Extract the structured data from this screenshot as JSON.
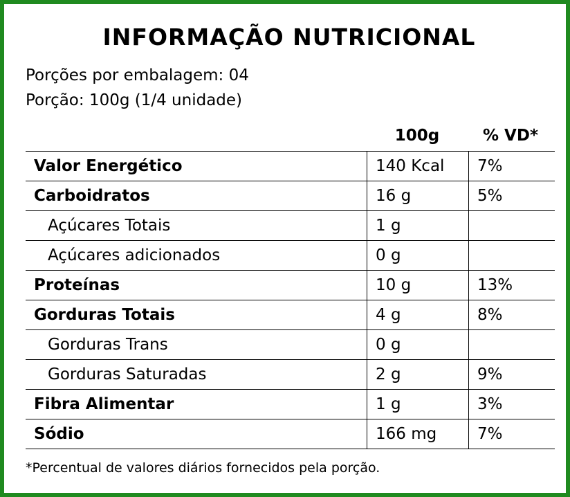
{
  "title": "INFORMAÇÃO NUTRICIONAL",
  "servings_per_package": "Porções por embalagem: 04",
  "serving_size": "Porção: 100g (1/4 unidade)",
  "headers": {
    "amount": "100g",
    "daily_value": "% VD*"
  },
  "rows": [
    {
      "name": "Valor Energético",
      "amount": "140 Kcal",
      "daily_value": "7%",
      "level": "main"
    },
    {
      "name": "Carboidratos",
      "amount": "16 g",
      "daily_value": "5%",
      "level": "main"
    },
    {
      "name": "Açúcares Totais",
      "amount": "1 g",
      "daily_value": "",
      "level": "sub"
    },
    {
      "name": "Açúcares adicionados",
      "amount": "0 g",
      "daily_value": "",
      "level": "sub"
    },
    {
      "name": "Proteínas",
      "amount": "10 g",
      "daily_value": "13%",
      "level": "main"
    },
    {
      "name": "Gorduras Totais",
      "amount": "4 g",
      "daily_value": "8%",
      "level": "main"
    },
    {
      "name": "Gorduras Trans",
      "amount": "0 g",
      "daily_value": "",
      "level": "sub"
    },
    {
      "name": "Gorduras Saturadas",
      "amount": "2 g",
      "daily_value": "9%",
      "level": "sub"
    },
    {
      "name": "Fibra Alimentar",
      "amount": "1 g",
      "daily_value": "3%",
      "level": "main"
    },
    {
      "name": "Sódio",
      "amount": "166 mg",
      "daily_value": "7%",
      "level": "main"
    }
  ],
  "footnote": "*Percentual de valores diários fornecidos pela porção.",
  "colors": {
    "border": "#1f8a1f",
    "background": "#ffffff",
    "text": "#000000"
  }
}
